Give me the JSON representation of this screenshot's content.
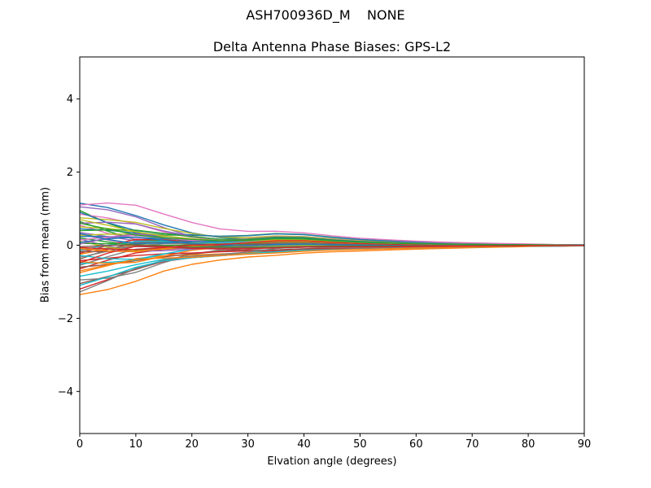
{
  "figure": {
    "suptitle": "ASH700936D_M    NONE",
    "axes_title": "Delta Antenna Phase Biases: GPS-L2",
    "xlabel": "Elvation angle (degrees)",
    "ylabel": "Bias from mean (mm)",
    "background_color": "#ffffff",
    "spine_color": "#000000"
  },
  "chart_data": {
    "type": "line",
    "suptitle": "ASH700936D_M    NONE",
    "title": "Delta Antenna Phase Biases: GPS-L2",
    "xlabel": "Elvation angle (degrees)",
    "ylabel": "Bias from mean (mm)",
    "xlim": [
      0,
      90
    ],
    "ylim": [
      -5.15,
      5.15
    ],
    "xticks": [
      0,
      10,
      20,
      30,
      40,
      50,
      60,
      70,
      80,
      90
    ],
    "yticks": [
      -4,
      -2,
      0,
      2,
      4
    ],
    "grid": false,
    "legend_position": "none",
    "line_width": 1.4,
    "color_cycle": [
      "#1f77b4",
      "#ff7f0e",
      "#2ca02c",
      "#d62728",
      "#9467bd",
      "#8c564b",
      "#e377c2",
      "#7f7f7f",
      "#bcbd22",
      "#17becf"
    ],
    "x": [
      0,
      5,
      10,
      15,
      20,
      25,
      30,
      35,
      40,
      45,
      50,
      55,
      60,
      65,
      70,
      75,
      80,
      85,
      90
    ],
    "basis": {
      "decays": [
        [
          1.0,
          0.74,
          0.52,
          0.36,
          0.26,
          0.2,
          0.17,
          0.15,
          0.13,
          0.11,
          0.09,
          0.075,
          0.06,
          0.05,
          0.04,
          0.03,
          0.02,
          0.015,
          0.008
        ],
        [
          1.0,
          0.85,
          0.65,
          0.45,
          0.33,
          0.26,
          0.215,
          0.185,
          0.155,
          0.13,
          0.105,
          0.085,
          0.07,
          0.056,
          0.044,
          0.033,
          0.023,
          0.02,
          0.012
        ],
        [
          1.0,
          0.8,
          0.55,
          0.36,
          0.22,
          0.14,
          0.1,
          0.085,
          0.072,
          0.06,
          0.05,
          0.042,
          0.035,
          0.028,
          0.022,
          0.016,
          0.011,
          0.008,
          0.004
        ],
        [
          1.0,
          0.92,
          0.78,
          0.6,
          0.45,
          0.34,
          0.27,
          0.22,
          0.18,
          0.15,
          0.12,
          0.1,
          0.08,
          0.064,
          0.05,
          0.037,
          0.026,
          0.015,
          0.008
        ]
      ],
      "bump_shape": [
        0,
        0.1,
        0.2,
        0.3,
        0.35,
        0.3,
        0.35,
        0.5,
        0.45,
        0.3,
        0.22,
        0.16,
        0.11,
        0.08,
        0.055,
        0.04,
        0.025,
        0.012,
        0.005
      ],
      "wiggle_shape": [
        0,
        0.5,
        0.8,
        0.55,
        0.25,
        0.08,
        0,
        0,
        0,
        0,
        0,
        0,
        0,
        0,
        0,
        0,
        0,
        0,
        0
      ],
      "mean_offset": [
        0,
        0,
        0,
        0,
        0,
        0,
        0.02,
        0.05,
        0.06,
        0.04,
        0.02,
        0.01,
        0.005,
        0,
        0,
        0,
        0,
        0,
        0
      ]
    },
    "series": {
      "starts": [
        1.15,
        -1.35,
        0.95,
        -1.2,
        1.05,
        -1.05,
        0.85,
        -0.95,
        0.75,
        -0.85,
        0.9,
        -0.75,
        0.65,
        -0.65,
        0.6,
        -0.6,
        0.55,
        -0.55,
        0.5,
        -0.5,
        0.45,
        -0.45,
        0.4,
        -0.42,
        0.35,
        -0.38,
        0.3,
        -0.33,
        0.27,
        -0.28,
        0.24,
        -0.25,
        0.2,
        -0.22,
        0.17,
        -0.18,
        0.14,
        -0.15,
        0.11,
        -0.12,
        0.08,
        -0.09,
        0.05,
        -0.06,
        0.03,
        -0.04,
        1.1,
        -1.28,
        0.7,
        -1.1,
        0.32,
        -0.7,
        0.6,
        -0.48
      ],
      "bumps": [
        0.1,
        -0.15,
        0.25,
        0.05,
        -0.2,
        0.22,
        -0.25,
        0.1,
        0.18,
        -0.1,
        0.25,
        -0.2,
        0.15,
        0.22,
        -0.05,
        -0.25,
        0.2,
        0.05,
        -0.15,
        0.25,
        -0.2,
        0.1,
        0.22,
        -0.25,
        0.05,
        0.15,
        -0.1,
        0.25,
        -0.2,
        0.18,
        0.22,
        -0.15,
        -0.05,
        0.2,
        -0.25,
        0.1,
        0.15,
        -0.18,
        0.05,
        0.22,
        -0.1,
        0.2,
        -0.22,
        0.15,
        0.25,
        -0.25,
        0.18,
        0.2,
        0.1,
        -0.05,
        0.18,
        -0.22,
        0.15,
        -0.1
      ],
      "wiggles": [
        0.2,
        -0.1,
        -0.25,
        0.15,
        0.3,
        -0.2,
        0.1,
        -0.3,
        0.25,
        0.05,
        -0.15,
        0.2,
        -0.3,
        0.1,
        0.25,
        -0.05,
        -0.2,
        0.3,
        0.15,
        -0.25,
        0.1,
        -0.3,
        0.2,
        0.05,
        -0.1,
        0.3,
        -0.2,
        0.15,
        0.25,
        -0.3,
        0.05,
        0.2,
        -0.15,
        0.3,
        -0.25,
        -0.05,
        0.2,
        0.1,
        -0.3,
        0.15,
        0.25,
        -0.2,
        0.05,
        -0.15,
        0.3,
        0.1,
        0.25,
        0.2,
        -0.05,
        0.15,
        -0.2,
        0.25,
        -0.1,
        0.3
      ],
      "decay_idx": [
        2,
        1,
        0,
        1,
        2,
        0,
        1,
        2,
        0,
        1,
        0,
        1,
        2,
        0,
        1,
        2,
        0,
        1,
        2,
        0,
        1,
        2,
        0,
        1,
        2,
        0,
        1,
        2,
        0,
        1,
        2,
        0,
        1,
        2,
        0,
        1,
        2,
        0,
        1,
        2,
        0,
        1,
        2,
        0,
        1,
        2,
        3,
        1,
        2,
        1,
        0,
        3,
        2,
        0
      ]
    }
  }
}
